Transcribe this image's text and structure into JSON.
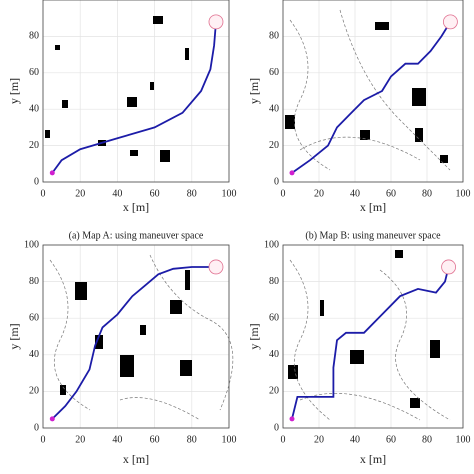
{
  "chart_data": [
    {
      "type": "line",
      "caption": "(a) Map A: using maneuver space",
      "xlabel": "x [m]",
      "ylabel": "y [m]",
      "xlim": [
        0,
        100
      ],
      "ylim": [
        0,
        100
      ],
      "xticks": [
        0,
        20,
        40,
        60,
        80,
        100
      ],
      "yticks": [
        0,
        20,
        40,
        60,
        80
      ],
      "grid": true,
      "series": [
        {
          "color": "#1c1ca8",
          "x": [
            5,
            10,
            20,
            40,
            60,
            75,
            85,
            90,
            92,
            93
          ],
          "y": [
            5,
            12,
            18,
            24,
            30,
            38,
            50,
            62,
            75,
            88
          ]
        }
      ]
    },
    {
      "type": "line",
      "caption": "(b) Map B: using maneuver space",
      "xlabel": "x [m]",
      "ylabel": "y [m]",
      "xlim": [
        0,
        100
      ],
      "ylim": [
        0,
        100
      ],
      "xticks": [
        0,
        20,
        40,
        60,
        80,
        100
      ],
      "yticks": [
        0,
        20,
        40,
        60,
        80
      ],
      "grid": true,
      "series": [
        {
          "color": "#1c1ca8",
          "x": [
            5,
            15,
            25,
            30,
            38,
            45,
            55,
            60,
            68,
            75,
            82,
            88,
            93
          ],
          "y": [
            5,
            12,
            20,
            30,
            38,
            45,
            50,
            58,
            65,
            65,
            72,
            80,
            88
          ]
        }
      ]
    },
    {
      "type": "line",
      "xlabel": "x [m]",
      "ylabel": "y [m]",
      "xlim": [
        0,
        100
      ],
      "ylim": [
        0,
        100
      ],
      "xticks": [
        0,
        20,
        40,
        60,
        80,
        100
      ],
      "yticks": [
        0,
        20,
        40,
        60,
        80,
        100
      ],
      "grid": true,
      "series": [
        {
          "color": "#1c1ca8",
          "x": [
            5,
            12,
            18,
            25,
            28,
            32,
            40,
            48,
            55,
            62,
            70,
            80,
            93
          ],
          "y": [
            5,
            12,
            20,
            32,
            45,
            55,
            62,
            72,
            78,
            84,
            87,
            88,
            88
          ]
        }
      ]
    },
    {
      "type": "line",
      "xlabel": "x [m]",
      "ylabel": "y [m]",
      "xlim": [
        0,
        100
      ],
      "ylim": [
        0,
        100
      ],
      "xticks": [
        0,
        20,
        40,
        60,
        80,
        100
      ],
      "yticks": [
        0,
        20,
        40,
        60,
        80,
        100
      ],
      "grid": true,
      "series": [
        {
          "color": "#1c1ca8",
          "x": [
            5,
            8,
            20,
            28,
            28,
            30,
            35,
            45,
            55,
            65,
            75,
            85,
            90,
            92
          ],
          "y": [
            5,
            17,
            17,
            17,
            33,
            48,
            52,
            52,
            62,
            72,
            76,
            74,
            80,
            88
          ]
        }
      ]
    }
  ]
}
